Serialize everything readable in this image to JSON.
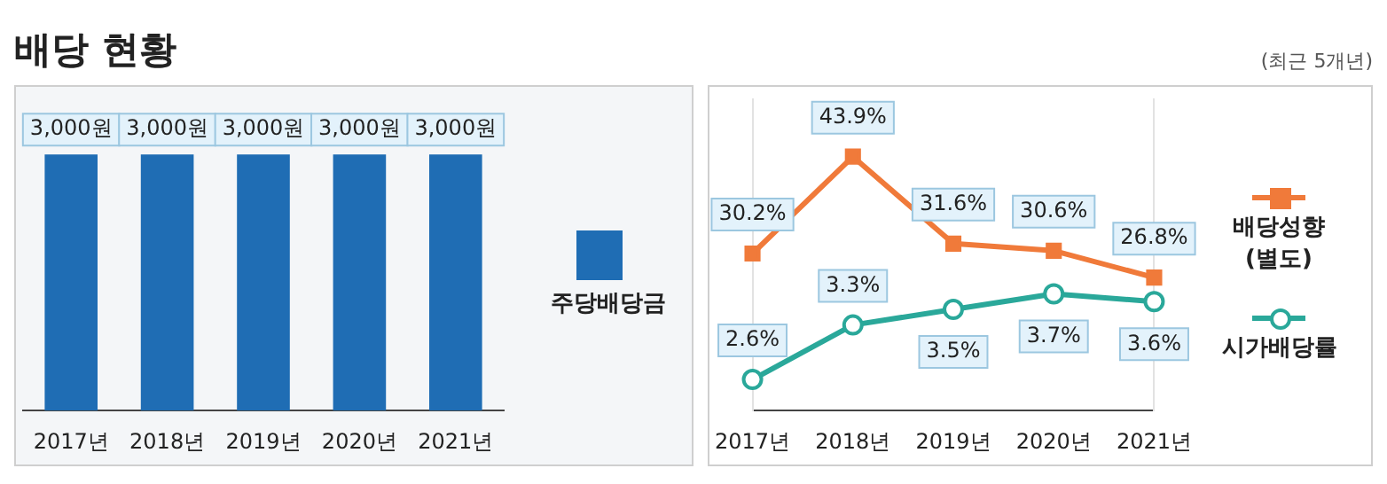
{
  "chart_data": [
    {
      "type": "bar",
      "title": "배당 현황",
      "annotations": [
        "(최근 5개년)"
      ],
      "categories": [
        "2017년",
        "2018년",
        "2019년",
        "2020년",
        "2021년"
      ],
      "series": [
        {
          "name": "주당배당금",
          "color": "#1f6db4",
          "values": [
            3000,
            3000,
            3000,
            3000,
            3000
          ],
          "value_labels": [
            "3,000원",
            "3,000원",
            "3,000원",
            "3,000원",
            "3,000원"
          ]
        }
      ],
      "legend": "right",
      "grid": false
    },
    {
      "type": "line",
      "categories": [
        "2017년",
        "2018년",
        "2019년",
        "2020년",
        "2021년"
      ],
      "series": [
        {
          "name": "배당성향 (별도)",
          "color": "#f07a3a",
          "marker": "square",
          "values": [
            30.2,
            43.9,
            31.6,
            30.6,
            26.8
          ],
          "value_labels": [
            "30.2%",
            "43.9%",
            "31.6%",
            "30.6%",
            "26.8%"
          ]
        },
        {
          "name": "시가배당률",
          "color": "#2aa89a",
          "marker": "circle",
          "axis": "y2",
          "values": [
            2.6,
            3.3,
            3.5,
            3.7,
            3.6
          ],
          "value_labels": [
            "2.6%",
            "3.3%",
            "3.5%",
            "3.7%",
            "3.6%"
          ]
        }
      ],
      "ylim": [
        8,
        52
      ],
      "y2lim": [
        2.2,
        6.2
      ],
      "legend": "right",
      "grid": false
    }
  ]
}
